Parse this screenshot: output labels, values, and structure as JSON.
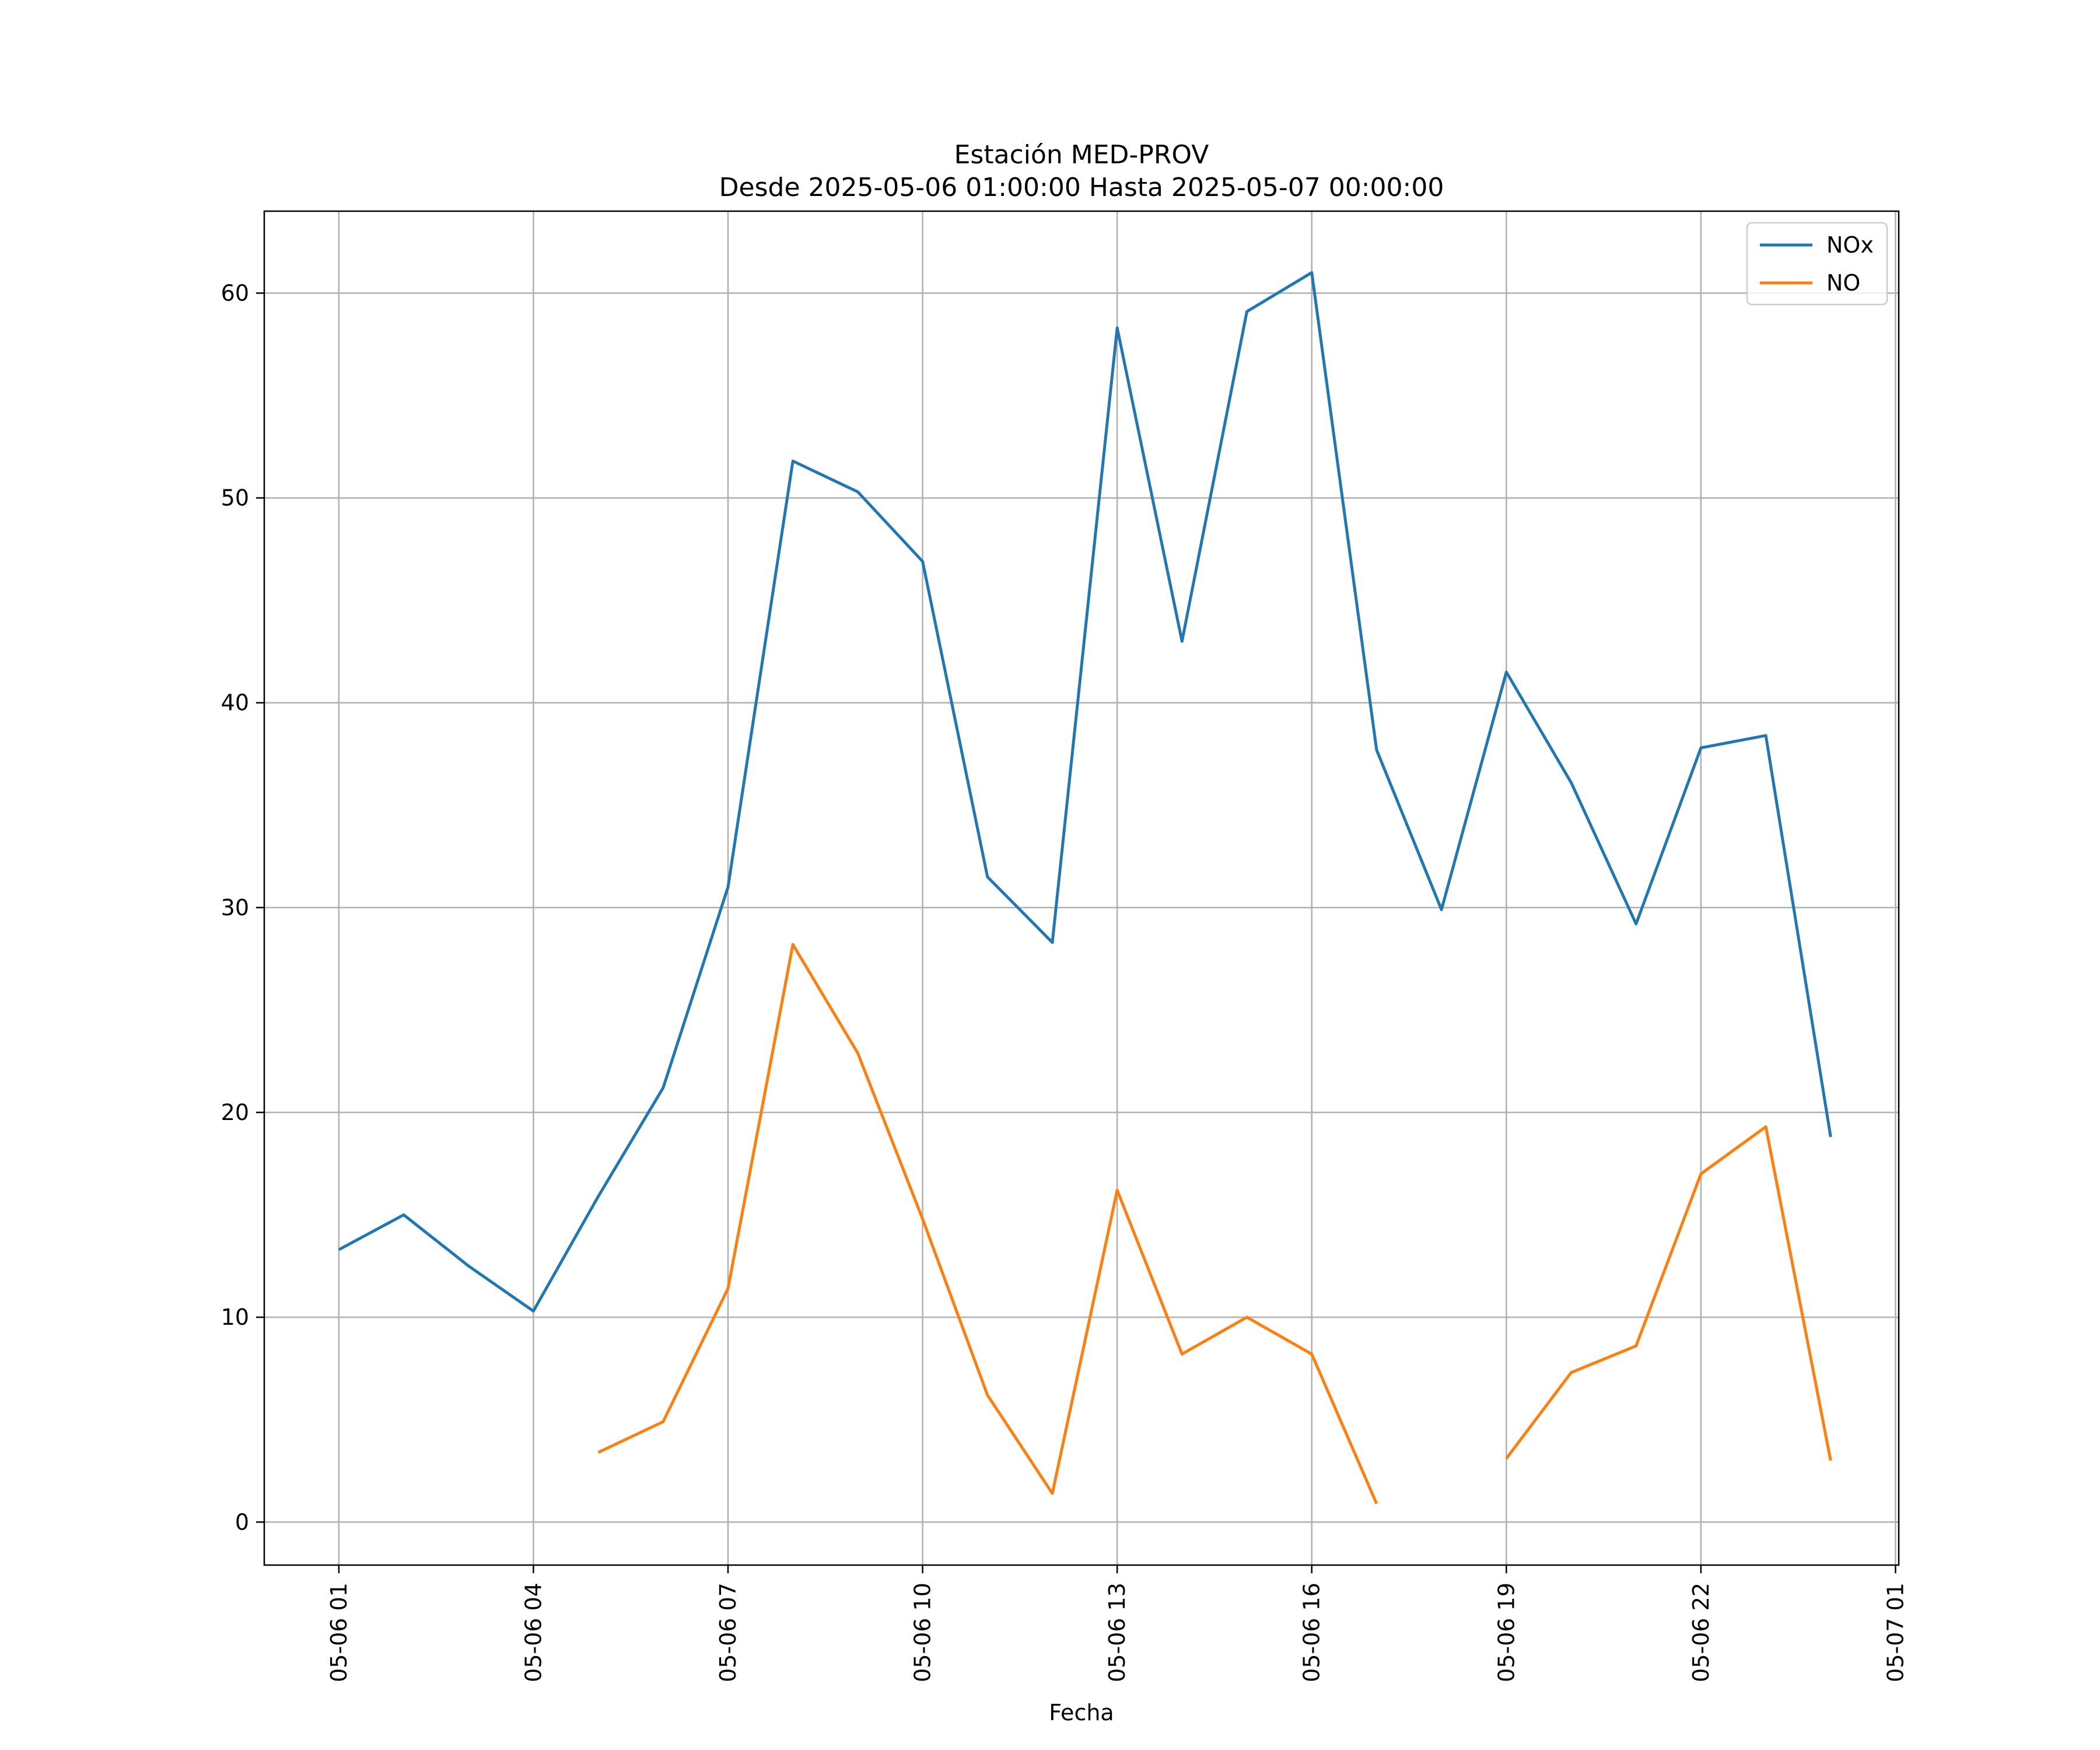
{
  "chart_data": {
    "type": "line",
    "title": "Estación MED-PROV",
    "subtitle": "Desde 2025-05-06 01:00:00 Hasta 2025-05-07 00:00:00",
    "xlabel": "Fecha",
    "ylabel": "",
    "x": [
      "05-06 01:00",
      "05-06 02:00",
      "05-06 03:00",
      "05-06 04:00",
      "05-06 05:00",
      "05-06 06:00",
      "05-06 07:00",
      "05-06 08:00",
      "05-06 09:00",
      "05-06 10:00",
      "05-06 11:00",
      "05-06 12:00",
      "05-06 13:00",
      "05-06 14:00",
      "05-06 15:00",
      "05-06 16:00",
      "05-06 17:00",
      "05-06 18:00",
      "05-06 19:00",
      "05-06 20:00",
      "05-06 21:00",
      "05-06 22:00",
      "05-06 23:00",
      "05-07 00:00"
    ],
    "x_tick_labels": [
      "05-06 01",
      "05-06 04",
      "05-06 07",
      "05-06 10",
      "05-06 13",
      "05-06 16",
      "05-06 19",
      "05-06 22",
      "05-07 01"
    ],
    "x_tick_positions": [
      "05-06 01:00",
      "05-06 04:00",
      "05-06 07:00",
      "05-06 10:00",
      "05-06 13:00",
      "05-06 16:00",
      "05-06 19:00",
      "05-06 22:00",
      "05-07 01:00"
    ],
    "xlim": [
      "05-06 00:00",
      "05-07 01:00"
    ],
    "y_ticks": [
      0,
      10,
      20,
      30,
      40,
      50,
      60
    ],
    "ylim": [
      -2.1,
      64
    ],
    "grid": true,
    "legend_position": "top-right",
    "series": [
      {
        "name": "NOx",
        "color": "#1f77b4",
        "values": [
          13.3,
          15.0,
          12.5,
          10.3,
          15.9,
          21.2,
          31.0,
          51.8,
          50.3,
          46.9,
          31.5,
          28.3,
          58.3,
          43.0,
          59.1,
          61.0,
          37.7,
          29.9,
          41.5,
          36.1,
          29.2,
          37.8,
          38.4,
          18.8
        ]
      },
      {
        "name": "NO",
        "color": "#ff7f0e",
        "values": [
          null,
          null,
          null,
          null,
          3.4,
          4.9,
          11.4,
          28.2,
          22.9,
          14.8,
          6.2,
          1.4,
          16.2,
          8.2,
          10.0,
          8.2,
          0.9,
          null,
          3.1,
          7.3,
          8.6,
          17.0,
          19.3,
          3.0
        ]
      }
    ]
  }
}
